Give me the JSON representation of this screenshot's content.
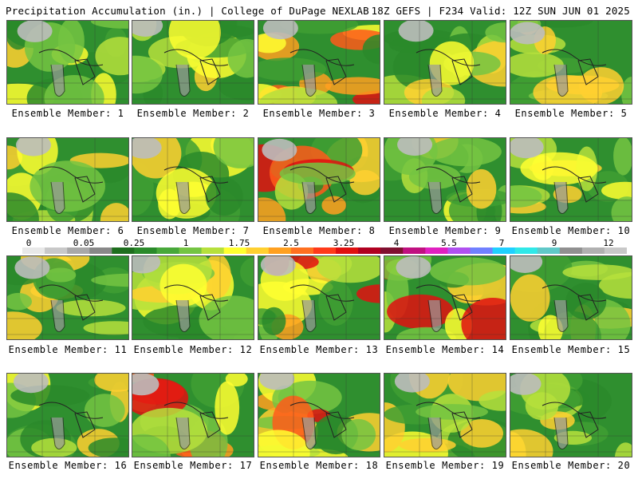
{
  "header": {
    "left": "Precipitation Accumulation (in.) | College of DuPage NEXLAB",
    "right": "18Z GEFS | F234 Valid: 12Z SUN JUN 01 2025"
  },
  "panels": [
    {
      "label": "Ensemble Member: 1",
      "icon": "precip-map-icon"
    },
    {
      "label": "Ensemble Member: 2",
      "icon": "precip-map-icon"
    },
    {
      "label": "Ensemble Member: 3",
      "icon": "precip-map-icon"
    },
    {
      "label": "Ensemble Member: 4",
      "icon": "precip-map-icon"
    },
    {
      "label": "Ensemble Member: 5",
      "icon": "precip-map-icon"
    },
    {
      "label": "Ensemble Member: 6",
      "icon": "precip-map-icon"
    },
    {
      "label": "Ensemble Member: 7",
      "icon": "precip-map-icon"
    },
    {
      "label": "Ensemble Member: 8",
      "icon": "precip-map-icon"
    },
    {
      "label": "Ensemble Member: 9",
      "icon": "precip-map-icon"
    },
    {
      "label": "Ensemble Member: 10",
      "icon": "precip-map-icon"
    },
    {
      "label": "Ensemble Member: 11",
      "icon": "precip-map-icon"
    },
    {
      "label": "Ensemble Member: 12",
      "icon": "precip-map-icon"
    },
    {
      "label": "Ensemble Member: 13",
      "icon": "precip-map-icon"
    },
    {
      "label": "Ensemble Member: 14",
      "icon": "precip-map-icon"
    },
    {
      "label": "Ensemble Member: 15",
      "icon": "precip-map-icon"
    },
    {
      "label": "Ensemble Member: 16",
      "icon": "precip-map-icon"
    },
    {
      "label": "Ensemble Member: 17",
      "icon": "precip-map-icon"
    },
    {
      "label": "Ensemble Member: 18",
      "icon": "precip-map-icon"
    },
    {
      "label": "Ensemble Member: 19",
      "icon": "precip-map-icon"
    },
    {
      "label": "Ensemble Member: 20",
      "icon": "precip-map-icon"
    }
  ],
  "scale": {
    "labels": [
      "0",
      "0.05",
      "0.25",
      "1",
      "1.75",
      "2.5",
      "3.25",
      "4",
      "5.5",
      "7",
      "9",
      "12"
    ],
    "colors": [
      "#e8e8e8",
      "#c8c8c8",
      "#a8a8a8",
      "#888888",
      "#1e6e1e",
      "#2a8a2a",
      "#48a83a",
      "#74c442",
      "#b6e03c",
      "#ffff30",
      "#ffd030",
      "#ffa020",
      "#ff7020",
      "#ff3a1a",
      "#e01010",
      "#b00020",
      "#801030",
      "#c01080",
      "#e020c0",
      "#b050f0",
      "#7080ff",
      "#20d0ff",
      "#30e8e8",
      "#60c8c8",
      "#909090",
      "#b0b0b0",
      "#c8c8c8"
    ]
  }
}
